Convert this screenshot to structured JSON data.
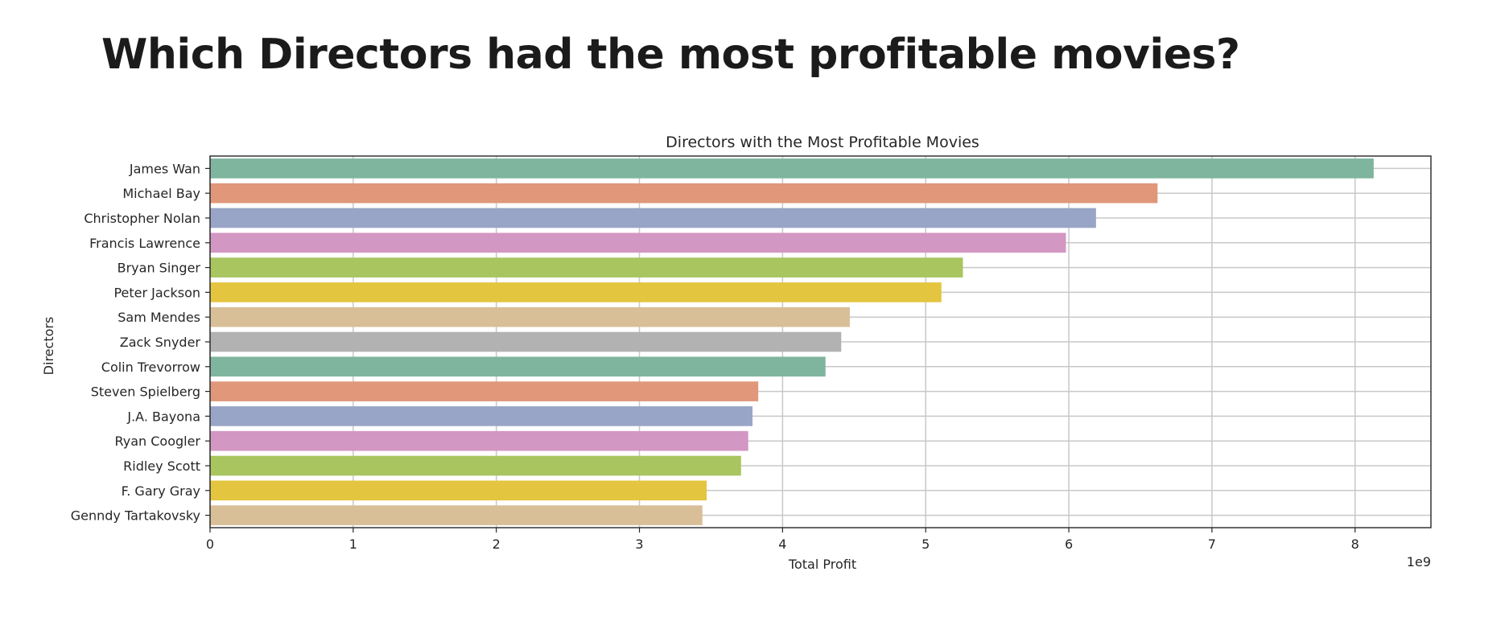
{
  "slide": {
    "title": "Which Directors had the most profitable movies?"
  },
  "chart_data": {
    "type": "bar",
    "orientation": "horizontal",
    "title": "Directors with the Most Profitable Movies",
    "xlabel": "Total Profit",
    "ylabel": "Directors",
    "x_offset_label": "1e9",
    "x_scale": 1000000000,
    "xlim": [
      0,
      8.53
    ],
    "x_ticks": [
      0,
      1,
      2,
      3,
      4,
      5,
      6,
      7,
      8
    ],
    "grid": true,
    "categories": [
      "James Wan",
      "Michael Bay",
      "Christopher Nolan",
      "Francis Lawrence",
      "Bryan Singer",
      "Peter Jackson",
      "Sam Mendes",
      "Zack Snyder",
      "Colin Trevorrow",
      "Steven Spielberg",
      "J.A. Bayona",
      "Ryan Coogler",
      "Ridley Scott",
      "F. Gary Gray",
      "Genndy Tartakovsky"
    ],
    "values": [
      8.13,
      6.62,
      6.19,
      5.98,
      5.26,
      5.11,
      4.47,
      4.41,
      4.3,
      3.83,
      3.79,
      3.76,
      3.71,
      3.47,
      3.44
    ],
    "colors": [
      "#7fb59f",
      "#e0977a",
      "#99a5c6",
      "#d397c3",
      "#a8c55f",
      "#e4c53f",
      "#d8bf98",
      "#b2b2b2",
      "#7fb59f",
      "#e0977a",
      "#99a5c6",
      "#d397c3",
      "#a8c55f",
      "#e4c53f",
      "#d8bf98"
    ]
  }
}
